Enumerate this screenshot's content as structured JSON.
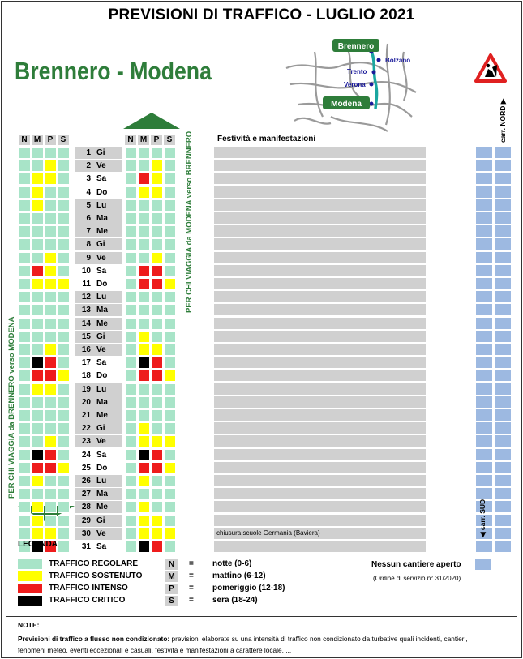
{
  "title": "PREVISIONI DI TRAFFICO - LUGLIO 2021",
  "route": "Brennero - Modena",
  "map": {
    "cities": [
      "Brennero",
      "Bolzano",
      "Trento",
      "Verona",
      "Modena"
    ]
  },
  "colors": {
    "R": "#a8e4c8",
    "G": "#a8e4c8",
    "Y": "#ffff00",
    "I": "#ee1c1c",
    "C": "#000000",
    "day": "#d0d0d0",
    "cantiere": "#9db9e1",
    "green": "#2e7d3a"
  },
  "headers": [
    "N",
    "M",
    "P",
    "S"
  ],
  "festivita_header": "Festività e manifestazioni",
  "label_south": "PER CHI VIAGGIA da BRENNERO verso MODENA",
  "label_north": "PER CHI VIAGGIA da MODENA verso BRENNERO",
  "carr_nord": "carr. NORD",
  "carr_sud": "carr. SUD",
  "days": [
    {
      "n": "1",
      "w": "Gi",
      "weekend": false,
      "south": "RRRR",
      "north": "RRRR",
      "fest": ""
    },
    {
      "n": "2",
      "w": "Ve",
      "weekend": false,
      "south": "RRYR",
      "north": "RRYR",
      "fest": ""
    },
    {
      "n": "3",
      "w": "Sa",
      "weekend": true,
      "south": "RYYR",
      "north": "RIYR",
      "fest": ""
    },
    {
      "n": "4",
      "w": "Do",
      "weekend": true,
      "south": "RYRR",
      "north": "RYYR",
      "fest": ""
    },
    {
      "n": "5",
      "w": "Lu",
      "weekend": false,
      "south": "RYRR",
      "north": "RRRR",
      "fest": ""
    },
    {
      "n": "6",
      "w": "Ma",
      "weekend": false,
      "south": "RRRR",
      "north": "RRRR",
      "fest": ""
    },
    {
      "n": "7",
      "w": "Me",
      "weekend": false,
      "south": "RRRR",
      "north": "RRRR",
      "fest": ""
    },
    {
      "n": "8",
      "w": "Gi",
      "weekend": false,
      "south": "RRRR",
      "north": "RRRR",
      "fest": ""
    },
    {
      "n": "9",
      "w": "Ve",
      "weekend": false,
      "south": "RRYR",
      "north": "RRYR",
      "fest": ""
    },
    {
      "n": "10",
      "w": "Sa",
      "weekend": true,
      "south": "RIYR",
      "north": "RIIR",
      "fest": ""
    },
    {
      "n": "11",
      "w": "Do",
      "weekend": true,
      "south": "RYYY",
      "north": "RIIY",
      "fest": ""
    },
    {
      "n": "12",
      "w": "Lu",
      "weekend": false,
      "south": "RRRR",
      "north": "RRRR",
      "fest": ""
    },
    {
      "n": "13",
      "w": "Ma",
      "weekend": false,
      "south": "RRRR",
      "north": "RRRR",
      "fest": ""
    },
    {
      "n": "14",
      "w": "Me",
      "weekend": false,
      "south": "RRRR",
      "north": "RRRR",
      "fest": ""
    },
    {
      "n": "15",
      "w": "Gi",
      "weekend": false,
      "south": "RRRR",
      "north": "RYRR",
      "fest": ""
    },
    {
      "n": "16",
      "w": "Ve",
      "weekend": false,
      "south": "RRYR",
      "north": "RYYR",
      "fest": ""
    },
    {
      "n": "17",
      "w": "Sa",
      "weekend": true,
      "south": "RCIR",
      "north": "RCIR",
      "fest": ""
    },
    {
      "n": "18",
      "w": "Do",
      "weekend": true,
      "south": "RIIY",
      "north": "RIIY",
      "fest": ""
    },
    {
      "n": "19",
      "w": "Lu",
      "weekend": false,
      "south": "RYYR",
      "north": "RRRR",
      "fest": ""
    },
    {
      "n": "20",
      "w": "Ma",
      "weekend": false,
      "south": "RRRR",
      "north": "RRRR",
      "fest": ""
    },
    {
      "n": "21",
      "w": "Me",
      "weekend": false,
      "south": "RRRR",
      "north": "RRRR",
      "fest": ""
    },
    {
      "n": "22",
      "w": "Gi",
      "weekend": false,
      "south": "RRRR",
      "north": "RYRR",
      "fest": ""
    },
    {
      "n": "23",
      "w": "Ve",
      "weekend": false,
      "south": "RRYR",
      "north": "RYYY",
      "fest": ""
    },
    {
      "n": "24",
      "w": "Sa",
      "weekend": true,
      "south": "RCIR",
      "north": "RCIR",
      "fest": ""
    },
    {
      "n": "25",
      "w": "Do",
      "weekend": true,
      "south": "RIIY",
      "north": "RIIY",
      "fest": ""
    },
    {
      "n": "26",
      "w": "Lu",
      "weekend": false,
      "south": "RYRR",
      "north": "RYRR",
      "fest": ""
    },
    {
      "n": "27",
      "w": "Ma",
      "weekend": false,
      "south": "RRRR",
      "north": "RRRR",
      "fest": ""
    },
    {
      "n": "28",
      "w": "Me",
      "weekend": false,
      "south": "RYRR",
      "north": "RYRR",
      "fest": ""
    },
    {
      "n": "29",
      "w": "Gi",
      "weekend": false,
      "south": "RYRR",
      "north": "RYYR",
      "fest": ""
    },
    {
      "n": "30",
      "w": "Ve",
      "weekend": false,
      "south": "RYYR",
      "north": "RYYY",
      "fest": "chiusura scuole Germania (Baviera)"
    },
    {
      "n": "31",
      "w": "Sa",
      "weekend": true,
      "south": "RCIR",
      "north": "RCIR",
      "fest": ""
    }
  ],
  "legend": {
    "title": "LEGENDA",
    "items": [
      {
        "code": "R",
        "label": "TRAFFICO REGOLARE"
      },
      {
        "code": "Y",
        "label": "TRAFFICO SOSTENUTO"
      },
      {
        "code": "I",
        "label": "TRAFFICO INTENSO"
      },
      {
        "code": "C",
        "label": "TRAFFICO CRITICO"
      }
    ],
    "keys": [
      {
        "k": "N",
        "eq": "=",
        "d": "notte (0-6)"
      },
      {
        "k": "M",
        "eq": "=",
        "d": "mattino (6-12)"
      },
      {
        "k": "P",
        "eq": "=",
        "d": "pomeriggio (12-18)"
      },
      {
        "k": "S",
        "eq": "=",
        "d": "sera (18-24)"
      }
    ],
    "cantiere": "Nessun cantiere aperto",
    "ordine": "(Ordine di servizio n° 31/2020)"
  },
  "notes": {
    "title": "NOTE:",
    "lead": "Previsioni di traffico a flusso non condizionato:",
    "text": " previsioni elaborate su una intensità di traffico non condizionato da turbative quali incidenti, cantieri, fenomeni meteo, eventi eccezionali e casuali, festività e manifestazioni a carattere locale, ..."
  }
}
